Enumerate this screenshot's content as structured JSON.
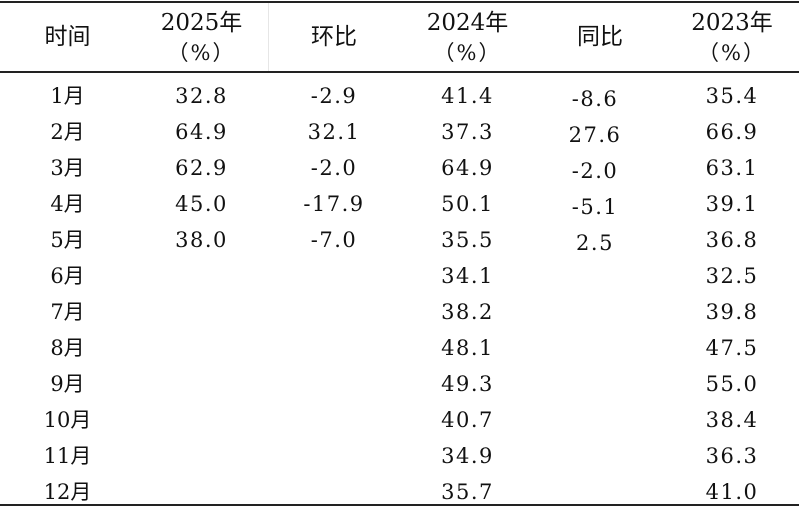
{
  "headers": {
    "time": "时间",
    "y2025_year": "2025年",
    "y2025_unit": "（%）",
    "mom": "环比",
    "y2024_year": "2024年",
    "y2024_unit": "（%）",
    "yoy": "同比",
    "y2023_year": "2023年",
    "y2023_unit": "（%）"
  },
  "rows": [
    {
      "month": "1月",
      "y2025": "32.8",
      "mom": "-2.9",
      "y2024": "41.4",
      "yoy": "-8.6",
      "y2023": "35.4"
    },
    {
      "month": "2月",
      "y2025": "64.9",
      "mom": "32.1",
      "y2024": "37.3",
      "yoy": "27.6",
      "y2023": "66.9"
    },
    {
      "month": "3月",
      "y2025": "62.9",
      "mom": "-2.0",
      "y2024": "64.9",
      "yoy": "-2.0",
      "y2023": "63.1"
    },
    {
      "month": "4月",
      "y2025": "45.0",
      "mom": "-17.9",
      "y2024": "50.1",
      "yoy": "-5.1",
      "y2023": "39.1"
    },
    {
      "month": "5月",
      "y2025": "38.0",
      "mom": "-7.0",
      "y2024": "35.5",
      "yoy": "2.5",
      "y2023": "36.8"
    },
    {
      "month": "6月",
      "y2025": "",
      "mom": "",
      "y2024": "34.1",
      "yoy": "",
      "y2023": "32.5"
    },
    {
      "month": "7月",
      "y2025": "",
      "mom": "",
      "y2024": "38.2",
      "yoy": "",
      "y2023": "39.8"
    },
    {
      "month": "8月",
      "y2025": "",
      "mom": "",
      "y2024": "48.1",
      "yoy": "",
      "y2023": "47.5"
    },
    {
      "month": "9月",
      "y2025": "",
      "mom": "",
      "y2024": "49.3",
      "yoy": "",
      "y2023": "55.0"
    },
    {
      "month": "10月",
      "y2025": "",
      "mom": "",
      "y2024": "40.7",
      "yoy": "",
      "y2023": "38.4"
    },
    {
      "month": "11月",
      "y2025": "",
      "mom": "",
      "y2024": "34.9",
      "yoy": "",
      "y2023": "36.3"
    },
    {
      "month": "12月",
      "y2025": "",
      "mom": "",
      "y2024": "35.7",
      "yoy": "",
      "y2023": "41.0"
    }
  ]
}
